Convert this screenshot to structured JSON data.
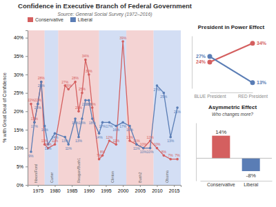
{
  "chart_data": [
    {
      "type": "line",
      "title": "Confidence in Executive Branch of Federal Government",
      "subtitle": "Source: General Social Survey (1972–2016)",
      "y_label": "% with Great Deal of Confidence",
      "x": [
        1973,
        1974,
        1975,
        1976,
        1977,
        1978,
        1980,
        1983,
        1984,
        1986,
        1987,
        1988,
        1989,
        1990,
        1991,
        1993,
        1994,
        1996,
        1998,
        2000,
        2002,
        2004,
        2006,
        2008,
        2010,
        2012,
        2014,
        2016
      ],
      "xlim": [
        1972,
        2017
      ],
      "xticks": [
        1975,
        1980,
        1985,
        1990,
        1995,
        2000,
        2005,
        2010,
        2015
      ],
      "ylim": [
        0,
        42
      ],
      "yticks": [
        {
          "value": 0,
          "label": "0%"
        },
        {
          "value": 5,
          "label": "5%"
        },
        {
          "value": 10,
          "label": "10%"
        },
        {
          "value": 15,
          "label": "15%"
        },
        {
          "value": 20,
          "label": "20%"
        },
        {
          "value": 25,
          "label": "25%"
        },
        {
          "value": 30,
          "label": "30%"
        },
        {
          "value": 35,
          "label": "35%"
        },
        {
          "value": 40,
          "label": "40%"
        }
      ],
      "grid": false,
      "legend": "upper left",
      "data_labels": true,
      "marker": "circle",
      "series": [
        {
          "name": "Conservative",
          "color": "#d45f5f",
          "values": [
            22,
            17,
            22,
            28,
            11,
            10,
            11,
            27,
            26,
            28,
            20,
            25,
            34,
            30,
            21,
            7,
            8,
            12,
            11,
            39,
            12,
            11,
            10,
            12,
            10,
            8,
            7,
            7
          ],
          "value_labels": [
            "22%",
            "17%",
            "22%",
            "28%",
            "11%",
            "10%",
            "11%",
            "27%",
            "26%",
            "28%",
            "20%",
            "25%",
            "34%",
            "30%",
            "21%",
            "7%",
            "8%",
            "12%",
            "11%",
            "39%",
            "12%",
            "11%",
            "10%",
            "12%",
            "10%",
            "8%",
            "7%",
            "7%"
          ]
        },
        {
          "name": "Liberal",
          "color": "#5a7db5",
          "values": [
            9,
            17,
            22,
            28,
            16,
            11,
            14,
            13,
            11,
            18,
            13,
            18,
            23,
            23,
            18,
            14,
            17,
            17,
            16,
            17,
            16,
            11,
            10,
            10,
            27,
            25,
            13,
            21
          ],
          "value_labels": [
            "9%",
            "17%",
            "22%",
            "28%",
            "16%",
            "11%",
            "14%",
            "13%",
            "11%",
            "18%",
            "13%",
            "18%",
            "23%",
            "23%",
            "18%",
            "14%",
            "17%",
            "17%",
            "16%",
            "17%",
            "16%",
            "11%",
            "10%",
            "10%",
            "27%",
            "25%",
            "13%",
            "21%"
          ]
        }
      ],
      "bands": [
        {
          "x0": 1972,
          "x1": 1977,
          "color": "#f0c0c0",
          "label": "Nixon/Ford"
        },
        {
          "x0": 1977,
          "x1": 1981,
          "color": "#c0d0f0",
          "label": "Carter"
        },
        {
          "x0": 1981,
          "x1": 1993,
          "color": "#f0c0c0",
          "label": "Reagan/Bush1"
        },
        {
          "x0": 1993,
          "x1": 2001,
          "color": "#c0d0f0",
          "label": "Clinton"
        },
        {
          "x0": 2001,
          "x1": 2009,
          "color": "#f0c0c0",
          "label": "Bush2"
        },
        {
          "x0": 2009,
          "x1": 2017,
          "color": "#c0d0f0",
          "label": "Obama"
        }
      ]
    },
    {
      "type": "line",
      "title": "President in Power Effect",
      "categories": [
        "BLUE President",
        "RED President"
      ],
      "ylim": [
        10,
        38
      ],
      "tick_labels": "x",
      "data_labels": true,
      "marker": "circle",
      "series": [
        {
          "color": "#d45f5f",
          "values": [
            24,
            34
          ],
          "value_labels": [
            "24%",
            "34%"
          ]
        },
        {
          "color": "#5a7db5",
          "values": [
            27,
            13
          ],
          "value_labels": [
            "27%",
            "13%"
          ]
        }
      ]
    },
    {
      "type": "bar",
      "title": "Asymmetric Effect",
      "subtitle": "Who changes more?",
      "categories": [
        "Conservative",
        "Liberal"
      ],
      "values": [
        14,
        -8
      ],
      "value_labels": [
        "14%",
        "-8%"
      ],
      "colors": [
        "#d45f5f",
        "#5a7db5"
      ],
      "ylim": [
        -14,
        22
      ],
      "tick_labels": "x",
      "data_labels": true
    }
  ]
}
